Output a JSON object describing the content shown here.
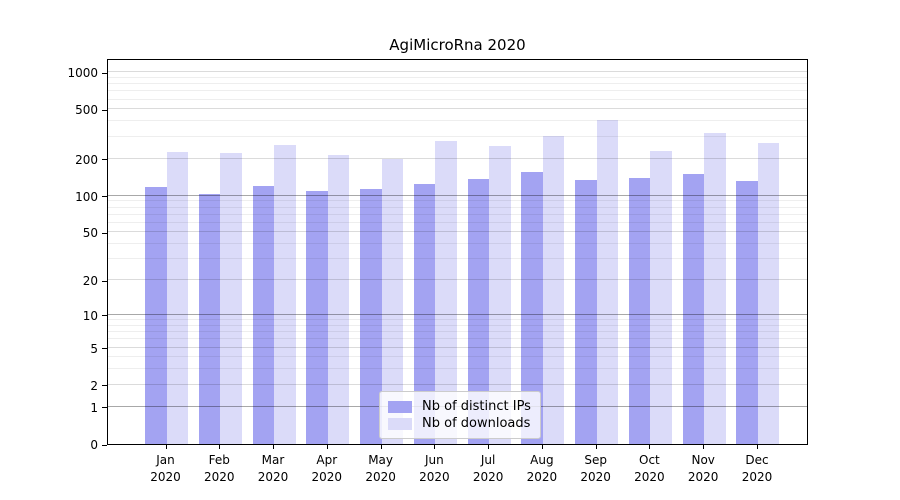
{
  "figure": {
    "title": "AgiMicroRna 2020",
    "background_color": "#ffffff"
  },
  "chart_data": {
    "type": "bar",
    "title": "AgiMicroRna 2020",
    "categories": [
      "Jan",
      "Feb",
      "Mar",
      "Apr",
      "May",
      "Jun",
      "Jul",
      "Aug",
      "Sep",
      "Oct",
      "Nov",
      "Dec"
    ],
    "x_year_label": "2020",
    "series": [
      {
        "name": "Nb of distinct IPs",
        "color": "#a3a3f2",
        "values": [
          118,
          104,
          120,
          109,
          113,
          124,
          136,
          155,
          135,
          140,
          149,
          131
        ]
      },
      {
        "name": "Nb of downloads",
        "color": "#dbdbf9",
        "values": [
          225,
          220,
          260,
          212,
          200,
          280,
          255,
          305,
          410,
          230,
          325,
          265
        ]
      }
    ],
    "yscale": "log1p",
    "ylim": [
      0,
      1300
    ],
    "yticks": [
      0,
      1,
      2,
      5,
      10,
      20,
      50,
      100,
      200,
      500,
      1000
    ],
    "ytick_emphasis": [
      1,
      10,
      100
    ],
    "minor_gridlines": [
      3,
      4,
      6,
      7,
      8,
      9,
      30,
      40,
      60,
      70,
      80,
      90,
      300,
      400,
      600,
      700,
      800,
      900
    ],
    "grid": true,
    "legend_position": "inside lower-center",
    "xlabel": "",
    "ylabel": ""
  },
  "legend": {
    "items": [
      {
        "label": "Nb of distinct IPs"
      },
      {
        "label": "Nb of downloads"
      }
    ]
  }
}
